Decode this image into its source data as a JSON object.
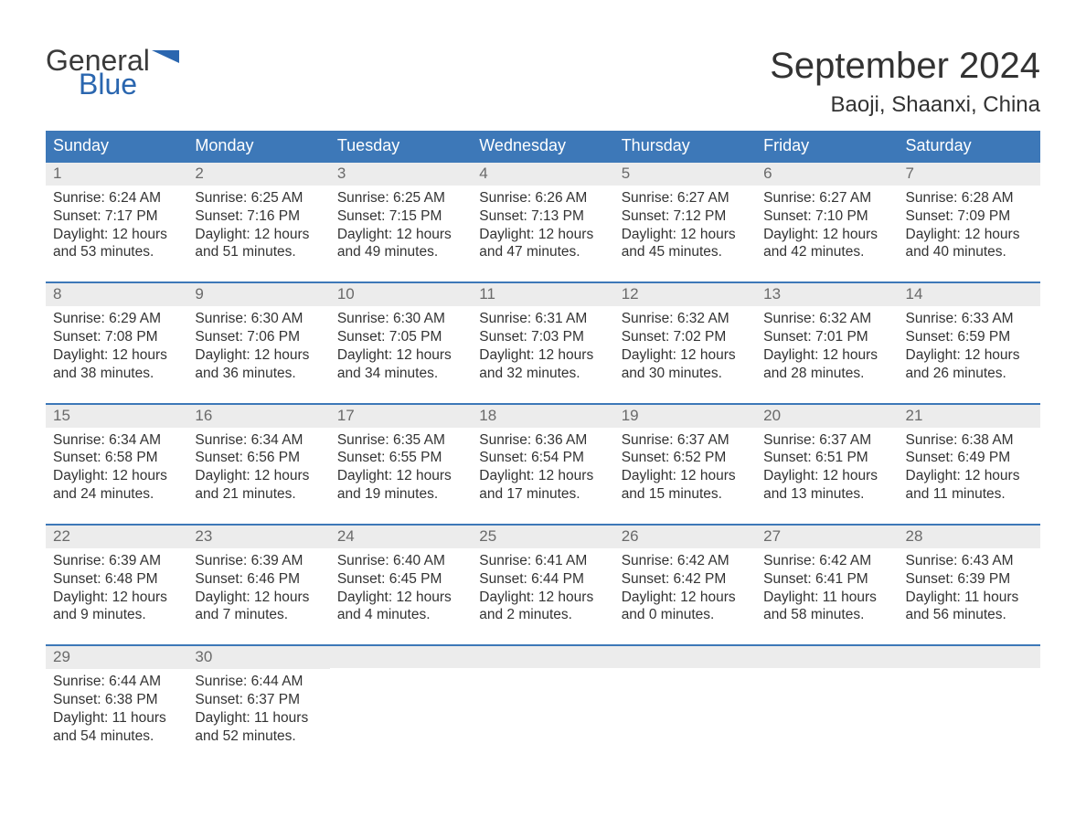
{
  "logo": {
    "text_general": "General",
    "text_blue": "Blue",
    "flag_color": "#2a66af"
  },
  "title": "September 2024",
  "location": "Baoji, Shaanxi, China",
  "colors": {
    "header_bg": "#3d78b8",
    "header_text": "#ffffff",
    "daynum_bg": "#ececec",
    "daynum_text": "#6a6a6a",
    "body_text": "#333333",
    "row_border": "#3d78b8",
    "background": "#ffffff"
  },
  "typography": {
    "title_fontsize": 40,
    "location_fontsize": 24,
    "day_header_fontsize": 18,
    "daynum_fontsize": 17,
    "body_fontsize": 15.5,
    "logo_fontsize": 32
  },
  "day_headers": [
    "Sunday",
    "Monday",
    "Tuesday",
    "Wednesday",
    "Thursday",
    "Friday",
    "Saturday"
  ],
  "weeks": [
    [
      {
        "n": "1",
        "sunrise": "6:24 AM",
        "sunset": "7:17 PM",
        "dl1": "Daylight: 12 hours",
        "dl2": "and 53 minutes."
      },
      {
        "n": "2",
        "sunrise": "6:25 AM",
        "sunset": "7:16 PM",
        "dl1": "Daylight: 12 hours",
        "dl2": "and 51 minutes."
      },
      {
        "n": "3",
        "sunrise": "6:25 AM",
        "sunset": "7:15 PM",
        "dl1": "Daylight: 12 hours",
        "dl2": "and 49 minutes."
      },
      {
        "n": "4",
        "sunrise": "6:26 AM",
        "sunset": "7:13 PM",
        "dl1": "Daylight: 12 hours",
        "dl2": "and 47 minutes."
      },
      {
        "n": "5",
        "sunrise": "6:27 AM",
        "sunset": "7:12 PM",
        "dl1": "Daylight: 12 hours",
        "dl2": "and 45 minutes."
      },
      {
        "n": "6",
        "sunrise": "6:27 AM",
        "sunset": "7:10 PM",
        "dl1": "Daylight: 12 hours",
        "dl2": "and 42 minutes."
      },
      {
        "n": "7",
        "sunrise": "6:28 AM",
        "sunset": "7:09 PM",
        "dl1": "Daylight: 12 hours",
        "dl2": "and 40 minutes."
      }
    ],
    [
      {
        "n": "8",
        "sunrise": "6:29 AM",
        "sunset": "7:08 PM",
        "dl1": "Daylight: 12 hours",
        "dl2": "and 38 minutes."
      },
      {
        "n": "9",
        "sunrise": "6:30 AM",
        "sunset": "7:06 PM",
        "dl1": "Daylight: 12 hours",
        "dl2": "and 36 minutes."
      },
      {
        "n": "10",
        "sunrise": "6:30 AM",
        "sunset": "7:05 PM",
        "dl1": "Daylight: 12 hours",
        "dl2": "and 34 minutes."
      },
      {
        "n": "11",
        "sunrise": "6:31 AM",
        "sunset": "7:03 PM",
        "dl1": "Daylight: 12 hours",
        "dl2": "and 32 minutes."
      },
      {
        "n": "12",
        "sunrise": "6:32 AM",
        "sunset": "7:02 PM",
        "dl1": "Daylight: 12 hours",
        "dl2": "and 30 minutes."
      },
      {
        "n": "13",
        "sunrise": "6:32 AM",
        "sunset": "7:01 PM",
        "dl1": "Daylight: 12 hours",
        "dl2": "and 28 minutes."
      },
      {
        "n": "14",
        "sunrise": "6:33 AM",
        "sunset": "6:59 PM",
        "dl1": "Daylight: 12 hours",
        "dl2": "and 26 minutes."
      }
    ],
    [
      {
        "n": "15",
        "sunrise": "6:34 AM",
        "sunset": "6:58 PM",
        "dl1": "Daylight: 12 hours",
        "dl2": "and 24 minutes."
      },
      {
        "n": "16",
        "sunrise": "6:34 AM",
        "sunset": "6:56 PM",
        "dl1": "Daylight: 12 hours",
        "dl2": "and 21 minutes."
      },
      {
        "n": "17",
        "sunrise": "6:35 AM",
        "sunset": "6:55 PM",
        "dl1": "Daylight: 12 hours",
        "dl2": "and 19 minutes."
      },
      {
        "n": "18",
        "sunrise": "6:36 AM",
        "sunset": "6:54 PM",
        "dl1": "Daylight: 12 hours",
        "dl2": "and 17 minutes."
      },
      {
        "n": "19",
        "sunrise": "6:37 AM",
        "sunset": "6:52 PM",
        "dl1": "Daylight: 12 hours",
        "dl2": "and 15 minutes."
      },
      {
        "n": "20",
        "sunrise": "6:37 AM",
        "sunset": "6:51 PM",
        "dl1": "Daylight: 12 hours",
        "dl2": "and 13 minutes."
      },
      {
        "n": "21",
        "sunrise": "6:38 AM",
        "sunset": "6:49 PM",
        "dl1": "Daylight: 12 hours",
        "dl2": "and 11 minutes."
      }
    ],
    [
      {
        "n": "22",
        "sunrise": "6:39 AM",
        "sunset": "6:48 PM",
        "dl1": "Daylight: 12 hours",
        "dl2": "and 9 minutes."
      },
      {
        "n": "23",
        "sunrise": "6:39 AM",
        "sunset": "6:46 PM",
        "dl1": "Daylight: 12 hours",
        "dl2": "and 7 minutes."
      },
      {
        "n": "24",
        "sunrise": "6:40 AM",
        "sunset": "6:45 PM",
        "dl1": "Daylight: 12 hours",
        "dl2": "and 4 minutes."
      },
      {
        "n": "25",
        "sunrise": "6:41 AM",
        "sunset": "6:44 PM",
        "dl1": "Daylight: 12 hours",
        "dl2": "and 2 minutes."
      },
      {
        "n": "26",
        "sunrise": "6:42 AM",
        "sunset": "6:42 PM",
        "dl1": "Daylight: 12 hours",
        "dl2": "and 0 minutes."
      },
      {
        "n": "27",
        "sunrise": "6:42 AM",
        "sunset": "6:41 PM",
        "dl1": "Daylight: 11 hours",
        "dl2": "and 58 minutes."
      },
      {
        "n": "28",
        "sunrise": "6:43 AM",
        "sunset": "6:39 PM",
        "dl1": "Daylight: 11 hours",
        "dl2": "and 56 minutes."
      }
    ],
    [
      {
        "n": "29",
        "sunrise": "6:44 AM",
        "sunset": "6:38 PM",
        "dl1": "Daylight: 11 hours",
        "dl2": "and 54 minutes."
      },
      {
        "n": "30",
        "sunrise": "6:44 AM",
        "sunset": "6:37 PM",
        "dl1": "Daylight: 11 hours",
        "dl2": "and 52 minutes."
      },
      {
        "empty": true
      },
      {
        "empty": true
      },
      {
        "empty": true
      },
      {
        "empty": true
      },
      {
        "empty": true
      }
    ]
  ],
  "labels": {
    "sunrise_prefix": "Sunrise: ",
    "sunset_prefix": "Sunset: "
  }
}
